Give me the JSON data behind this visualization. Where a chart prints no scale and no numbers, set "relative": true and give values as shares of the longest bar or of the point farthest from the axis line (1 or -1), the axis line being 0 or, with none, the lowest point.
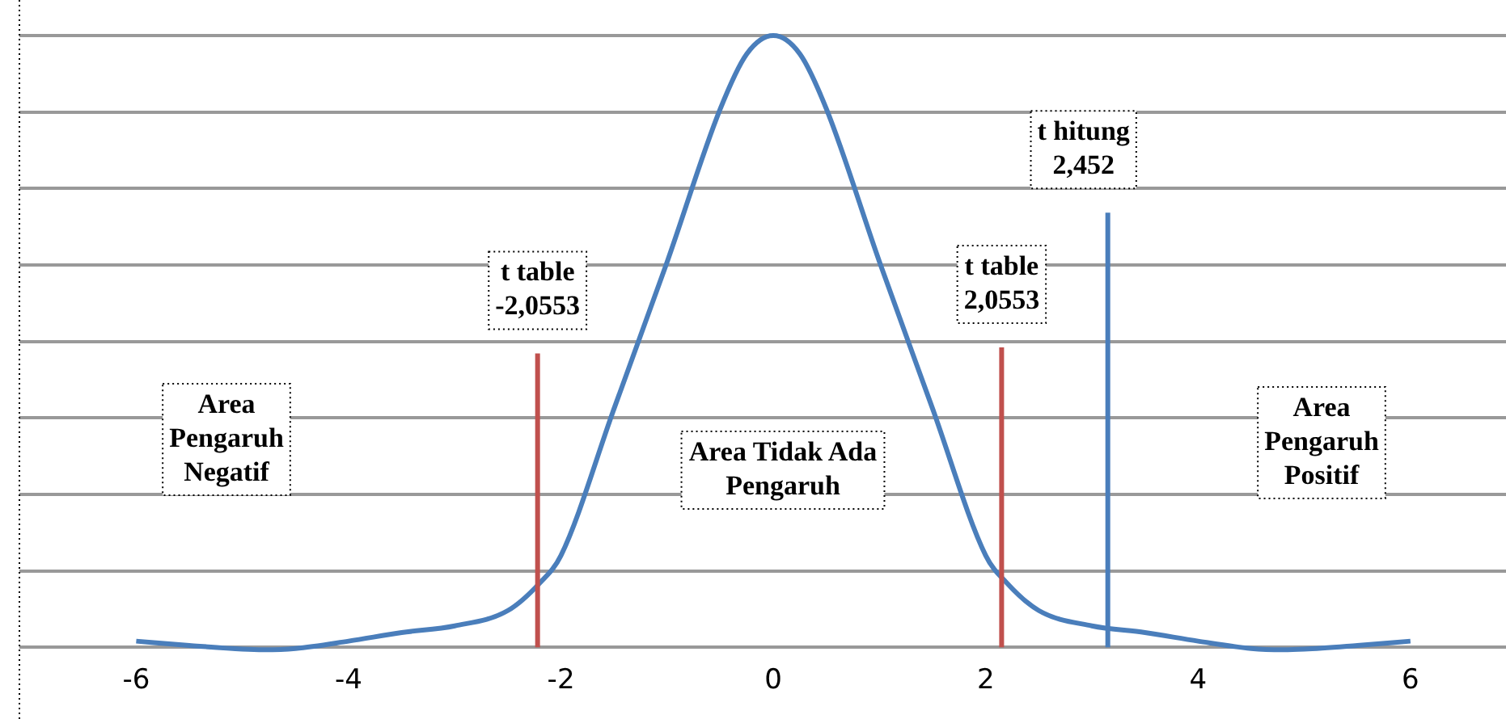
{
  "chart_data": {
    "type": "line",
    "relative": true,
    "grid": "y",
    "legend": false,
    "marker": "none",
    "line_style": "solid",
    "x": [
      -6,
      -5.5,
      -5,
      -4.8,
      -4.5,
      -4,
      -3.5,
      -3,
      -2.5,
      -2.2,
      -2,
      -1.5,
      -1,
      -0.5,
      -0.25,
      0,
      0.25,
      0.5,
      1,
      1.5,
      2,
      2.2,
      2.5,
      3,
      3.5,
      4,
      4.5,
      4.8,
      5,
      5.5,
      6
    ],
    "series": [
      {
        "color": "#4a7ebb",
        "values": [
          0.01,
          0.003,
          -0.003,
          -0.004,
          -0.002,
          0.01,
          0.024,
          0.035,
          0.06,
          0.105,
          0.15,
          0.39,
          0.63,
          0.88,
          0.97,
          1,
          0.97,
          0.88,
          0.63,
          0.39,
          0.15,
          0.105,
          0.06,
          0.035,
          0.024,
          0.01,
          -0.002,
          -0.004,
          -0.003,
          0.003,
          0.01
        ]
      }
    ],
    "xlim": [
      -7.1,
      6.9
    ],
    "xticks": [
      -6,
      -4,
      -2,
      0,
      2,
      4,
      6
    ],
    "ref_lines": [
      {
        "axis": "x",
        "value": -2.22,
        "label": "t table -2,0553",
        "color": "#c0504d"
      },
      {
        "axis": "x",
        "value": 2.15,
        "label": "t table 2,0553",
        "color": "#c0504d"
      },
      {
        "axis": "x",
        "value": 3.15,
        "label": "t hitung 2,452",
        "color": "#4a7ebb"
      }
    ],
    "annotations": [
      "Area Pengaruh Negatif",
      "Area Tidak Ada Pengaruh",
      "Area Pengaruh Positif"
    ]
  }
}
